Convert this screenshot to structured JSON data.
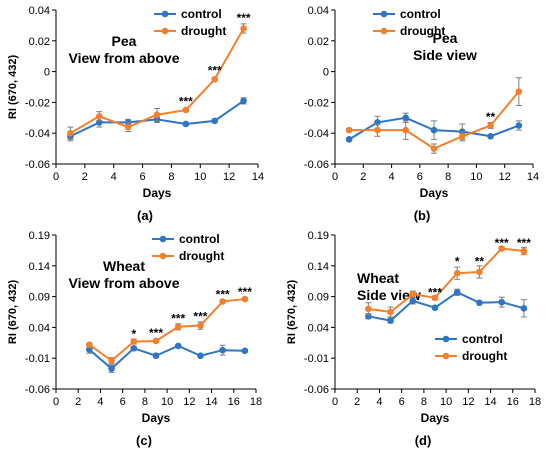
{
  "colors": {
    "control": "#2E75C6",
    "drought": "#F4802E",
    "axis": "#000000",
    "error": "#7F7F7F"
  },
  "chart_data": [
    {
      "type": "line",
      "panel_label": "(a)",
      "title_lines": [
        "Pea",
        "View from above"
      ],
      "xlabel": "Days",
      "ylabel": "RI (670, 432)",
      "xlim": [
        0,
        14
      ],
      "ylim": [
        -0.06,
        0.04
      ],
      "xticks": [
        0,
        2,
        4,
        6,
        8,
        10,
        12,
        14
      ],
      "yticks": [
        -0.06,
        -0.04,
        -0.02,
        0,
        0.02,
        0.04
      ],
      "ytick_labels": [
        "-0.06",
        "-0.04",
        "-0.02",
        "0",
        "0.02",
        "0.04"
      ],
      "grid": false,
      "legend_position": "top-right",
      "series": [
        {
          "name": "control",
          "x": [
            1,
            3,
            5,
            7,
            9,
            11,
            13
          ],
          "y": [
            -0.042,
            -0.033,
            -0.033,
            -0.031,
            -0.034,
            -0.032,
            -0.019
          ],
          "err": [
            0.003,
            0.003,
            0.002,
            0.002,
            0.001,
            0.001,
            0.002
          ]
        },
        {
          "name": "drought",
          "x": [
            1,
            3,
            5,
            7,
            9,
            11,
            13
          ],
          "y": [
            -0.04,
            -0.029,
            -0.036,
            -0.028,
            -0.025,
            -0.005,
            0.028
          ],
          "err": [
            0.004,
            0.003,
            0.003,
            0.004,
            0.001,
            0.001,
            0.003
          ]
        }
      ],
      "annotations": [
        {
          "text": "***",
          "x": 9,
          "y": -0.02
        },
        {
          "text": "***",
          "x": 11,
          "y": 0.0
        },
        {
          "text": "***",
          "x": 13,
          "y": 0.034
        }
      ]
    },
    {
      "type": "line",
      "panel_label": "(b)",
      "title_lines": [
        "Pea",
        "Side view"
      ],
      "xlabel": "Days",
      "ylabel": "",
      "xlim": [
        0,
        14
      ],
      "ylim": [
        -0.06,
        0.04
      ],
      "xticks": [
        0,
        2,
        4,
        6,
        8,
        10,
        12,
        14
      ],
      "yticks": [
        -0.06,
        -0.04,
        -0.02,
        0,
        0.02,
        0.04
      ],
      "ytick_labels": [
        "-0.06",
        "-0.04",
        "-0.02",
        "0",
        "0.02",
        "0.04"
      ],
      "grid": false,
      "legend_position": "top-right",
      "series": [
        {
          "name": "control",
          "x": [
            1,
            3,
            5,
            7,
            9,
            11,
            13
          ],
          "y": [
            -0.044,
            -0.033,
            -0.03,
            -0.038,
            -0.039,
            -0.042,
            -0.035
          ],
          "err": [
            0.001,
            0.004,
            0.003,
            0.006,
            0.005,
            0.001,
            0.003
          ]
        },
        {
          "name": "drought",
          "x": [
            1,
            3,
            5,
            7,
            9,
            11,
            13
          ],
          "y": [
            -0.038,
            -0.038,
            -0.038,
            -0.05,
            -0.042,
            -0.035,
            -0.013
          ],
          "err": [
            0.001,
            0.004,
            0.006,
            0.003,
            0.003,
            0.002,
            0.009
          ]
        }
      ],
      "annotations": [
        {
          "text": "**",
          "x": 11,
          "y": -0.03
        }
      ]
    },
    {
      "type": "line",
      "panel_label": "(c)",
      "title_lines": [
        "Wheat",
        "View from above"
      ],
      "xlabel": "Days",
      "ylabel": "RI (670, 432)",
      "xlim": [
        0,
        18
      ],
      "ylim": [
        -0.06,
        0.19
      ],
      "xticks": [
        0,
        2,
        4,
        6,
        8,
        10,
        12,
        14,
        16,
        18
      ],
      "yticks": [
        -0.06,
        -0.01,
        0.04,
        0.09,
        0.14,
        0.19
      ],
      "ytick_labels": [
        "-0.06",
        "-0.01",
        "0.04",
        "0.09",
        "0.14",
        "0.19"
      ],
      "grid": false,
      "legend_position": "top-right",
      "series": [
        {
          "name": "control",
          "x": [
            3,
            5,
            7,
            9,
            11,
            13,
            15,
            17
          ],
          "y": [
            0.004,
            -0.027,
            0.006,
            -0.006,
            0.01,
            -0.006,
            0.003,
            0.002
          ],
          "err": [
            0.006,
            0.006,
            0.003,
            0.003,
            0.002,
            0.002,
            0.008,
            0.002
          ]
        },
        {
          "name": "drought",
          "x": [
            3,
            5,
            7,
            9,
            11,
            13,
            15,
            17
          ],
          "y": [
            0.012,
            -0.014,
            0.017,
            0.018,
            0.041,
            0.043,
            0.082,
            0.086
          ],
          "err": [
            0.002,
            0.005,
            0.004,
            0.002,
            0.005,
            0.006,
            0.002,
            0.002
          ]
        }
      ],
      "annotations": [
        {
          "text": "*",
          "x": 7,
          "y": 0.028
        },
        {
          "text": "***",
          "x": 9,
          "y": 0.029
        },
        {
          "text": "***",
          "x": 11,
          "y": 0.053
        },
        {
          "text": "***",
          "x": 13,
          "y": 0.056
        },
        {
          "text": "***",
          "x": 15,
          "y": 0.092
        },
        {
          "text": "***",
          "x": 17,
          "y": 0.096
        }
      ]
    },
    {
      "type": "line",
      "panel_label": "(d)",
      "title_lines": [
        "Wheat",
        "Side view"
      ],
      "xlabel": "Days",
      "ylabel": "RI (670, 432)",
      "xlim": [
        0,
        18
      ],
      "ylim": [
        -0.06,
        0.19
      ],
      "xticks": [
        0,
        2,
        4,
        6,
        8,
        10,
        12,
        14,
        16,
        18
      ],
      "yticks": [
        -0.06,
        -0.01,
        0.04,
        0.09,
        0.14,
        0.19
      ],
      "ytick_labels": [
        "-0.06",
        "-0.01",
        "0.04",
        "0.09",
        "0.14",
        "0.19"
      ],
      "grid": false,
      "legend_position": "bottom-right",
      "series": [
        {
          "name": "control",
          "x": [
            3,
            5,
            7,
            9,
            11,
            13,
            15,
            17
          ],
          "y": [
            0.058,
            0.051,
            0.083,
            0.072,
            0.097,
            0.08,
            0.081,
            0.071
          ],
          "err": [
            0.004,
            0.004,
            0.005,
            0.003,
            0.005,
            0.002,
            0.008,
            0.014
          ]
        },
        {
          "name": "drought",
          "x": [
            3,
            5,
            7,
            9,
            11,
            13,
            15,
            17
          ],
          "y": [
            0.07,
            0.065,
            0.094,
            0.088,
            0.128,
            0.13,
            0.168,
            0.164
          ],
          "err": [
            0.01,
            0.008,
            0.005,
            0.003,
            0.01,
            0.01,
            0.003,
            0.006
          ]
        }
      ],
      "annotations": [
        {
          "text": "***",
          "x": 9,
          "y": 0.095
        },
        {
          "text": "*",
          "x": 11,
          "y": 0.145
        },
        {
          "text": "**",
          "x": 13,
          "y": 0.145
        },
        {
          "text": "***",
          "x": 15,
          "y": 0.175
        },
        {
          "text": "***",
          "x": 17,
          "y": 0.175
        }
      ]
    }
  ]
}
